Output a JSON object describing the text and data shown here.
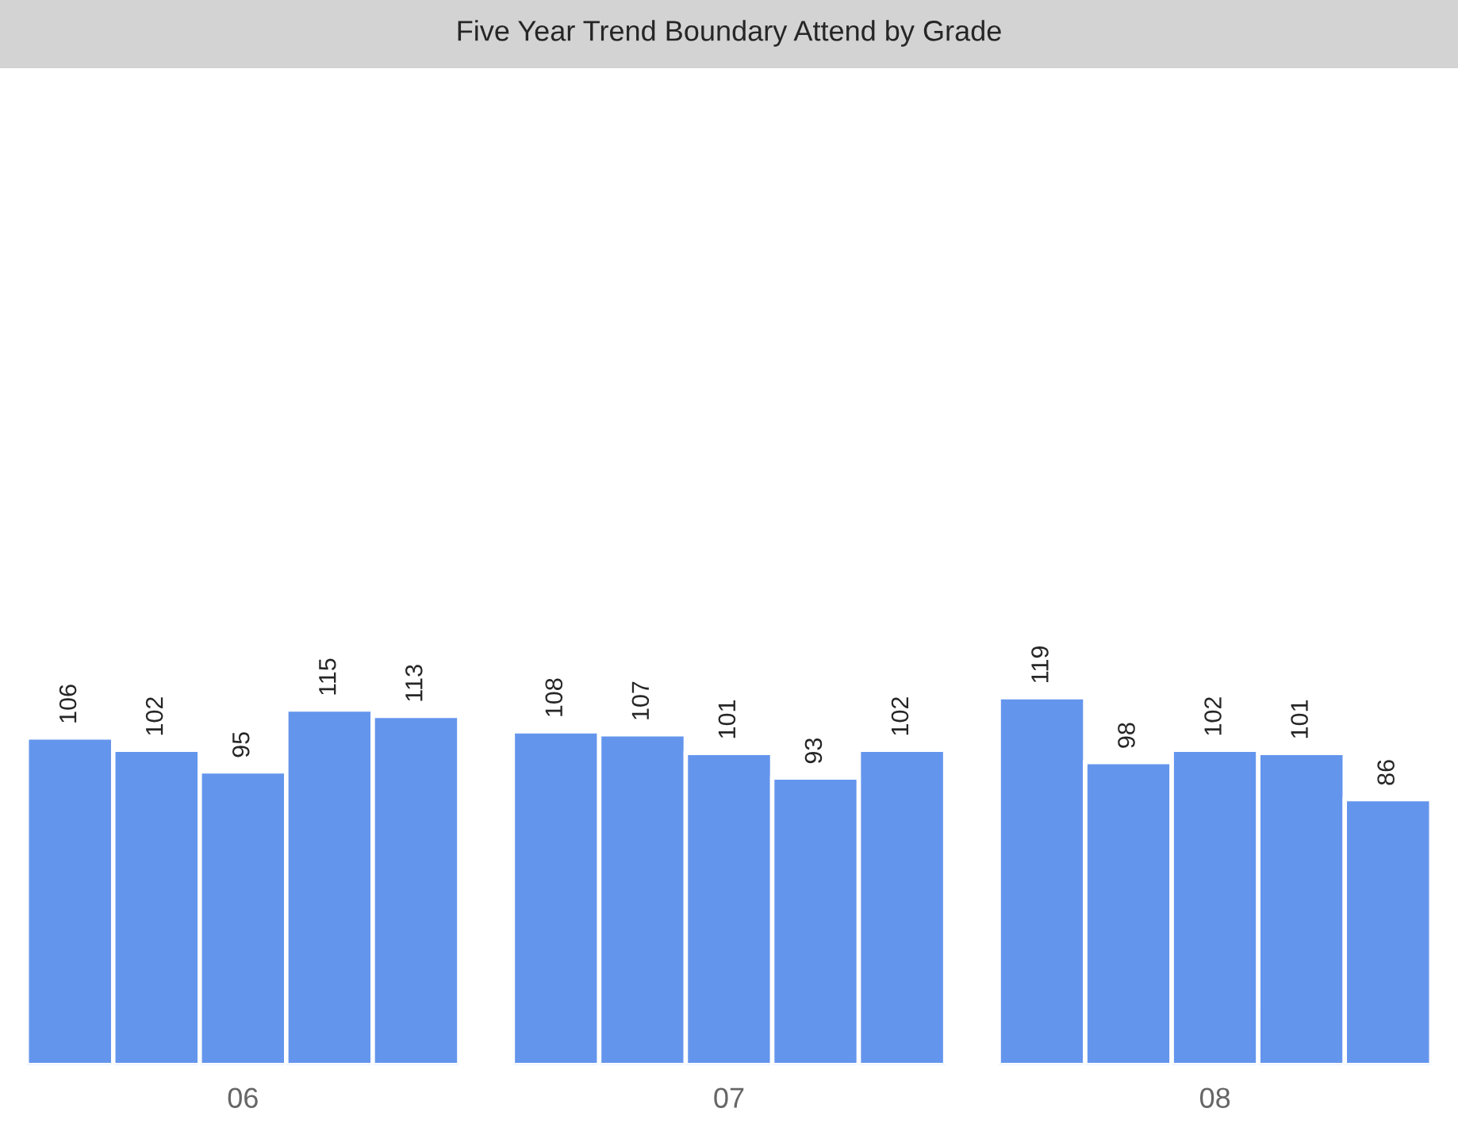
{
  "chart_data": {
    "type": "bar",
    "title": "Five Year Trend Boundary Attend by Grade",
    "categories": [
      "06",
      "07",
      "08"
    ],
    "series": [
      {
        "color": "#6495ed",
        "values": [
          106,
          108,
          119
        ]
      },
      {
        "color": "#6495ed",
        "values": [
          102,
          107,
          98
        ]
      },
      {
        "color": "#6495ed",
        "values": [
          95,
          101,
          102
        ]
      },
      {
        "color": "#6495ed",
        "values": [
          115,
          93,
          101
        ]
      },
      {
        "color": "#6495ed",
        "values": [
          113,
          102,
          86
        ]
      }
    ],
    "tick_labels": "x",
    "data_labels": true,
    "grid": false
  }
}
